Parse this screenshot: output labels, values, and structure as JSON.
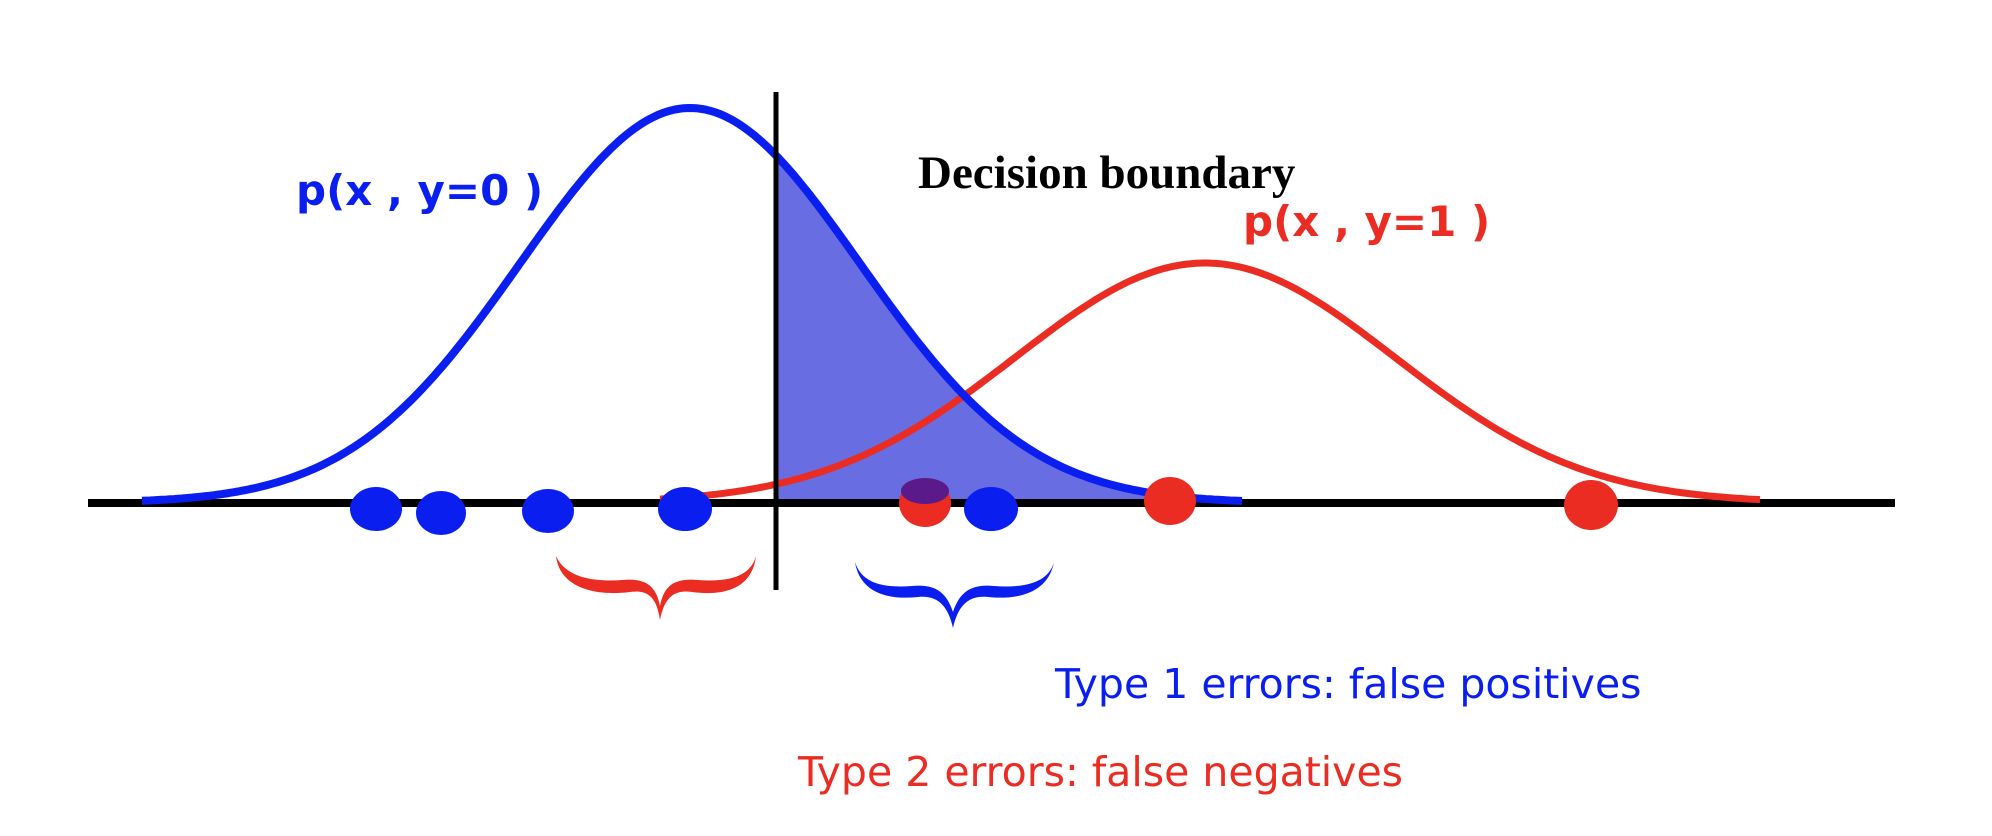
{
  "labels": {
    "class0": "p(x , y=0 )",
    "class1": "p(x , y=1 )",
    "boundary": "Decision boundary",
    "type1": "Type 1 errors: false positives",
    "type2": "Type 2 errors: false negatives"
  },
  "colors": {
    "blue": "#0a1ef0",
    "red": "#ea2c22",
    "shade": "#5b62e0",
    "axis": "#000000"
  },
  "samples": {
    "class0": [
      1,
      2,
      3,
      4,
      5
    ],
    "class1": [
      1,
      2,
      3
    ]
  }
}
